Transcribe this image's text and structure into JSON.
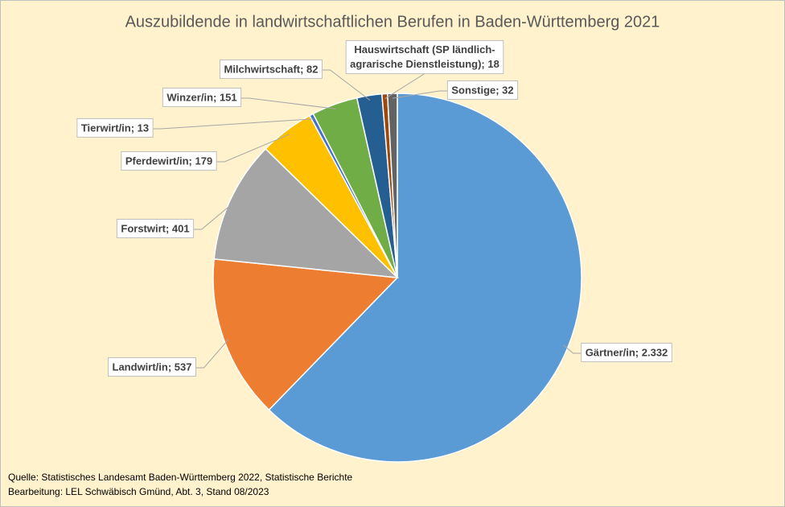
{
  "chart_data": {
    "type": "pie",
    "title": "Auszubildende in landwirtschaftlichen Berufen in Baden-Württemberg 2021",
    "values": [
      2332,
      537,
      401,
      179,
      13,
      151,
      82,
      18,
      32
    ],
    "value_labels": [
      "Gärtner/in; 2.332",
      "Landwirt/in; 537",
      "Forstwirt; 401",
      "Pferdewirt/in; 179",
      "Tierwirt/in; 13",
      "Winzer/in; 151",
      "Milchwirtschaft; 82",
      "Hauswirtschaft (SP ländlich-agrarische Dienstleistung); 18",
      "Sonstige; 32"
    ],
    "colors": [
      "#5b9bd5",
      "#ed7d31",
      "#a5a5a5",
      "#ffc000",
      "#4472c4",
      "#70ad47",
      "#255e91",
      "#9e480e",
      "#636363"
    ],
    "notes": [
      "Quelle: Statistisches Landesamt Baden-Württemberg 2022, Statistische Berichte",
      "Bearbeitung: LEL Schwäbisch Gmünd, Abt. 3, Stand 08/2023"
    ]
  }
}
